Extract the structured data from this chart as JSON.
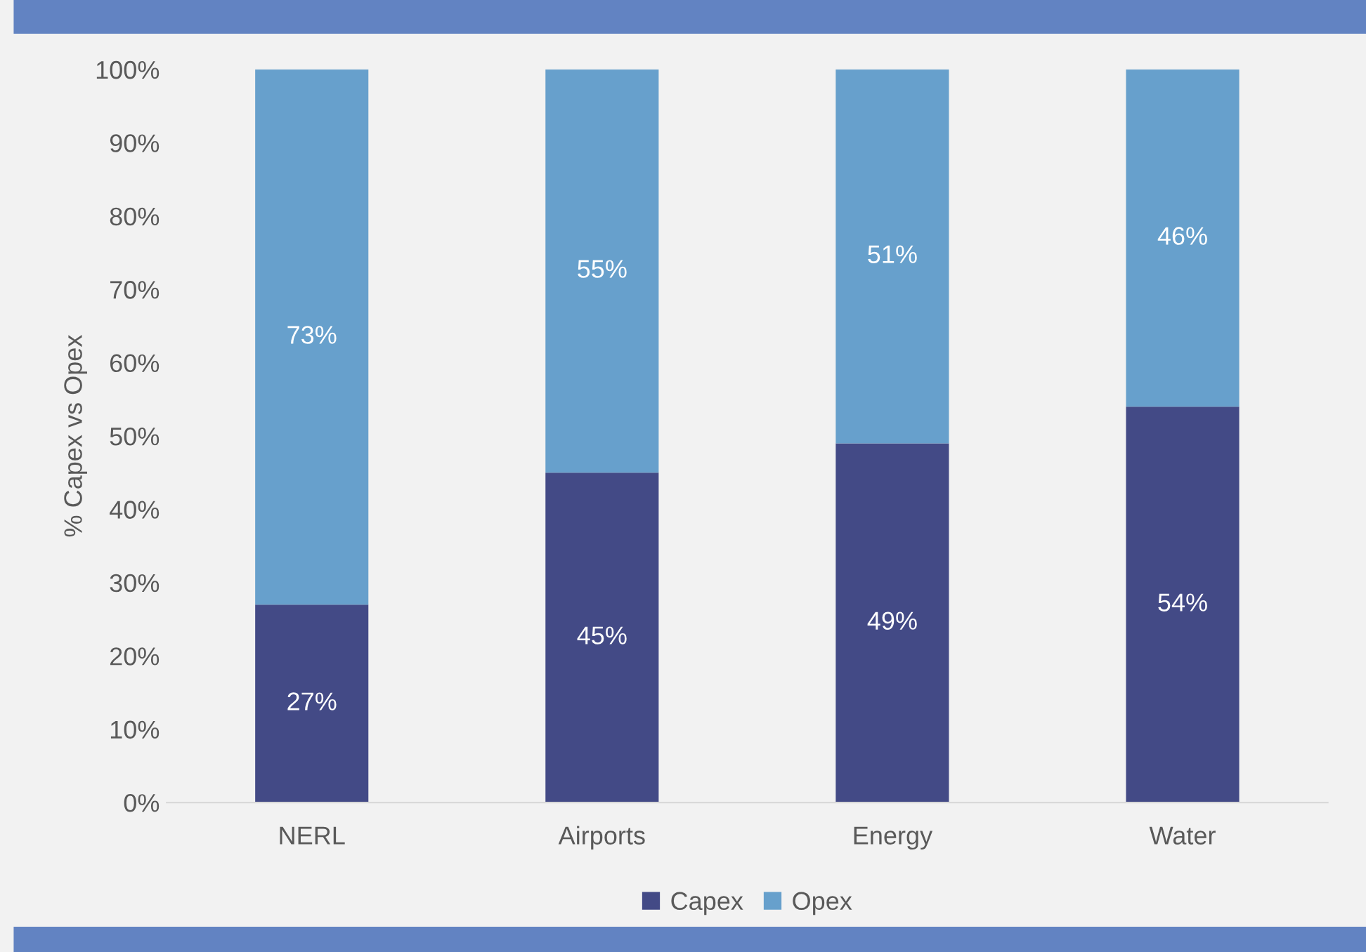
{
  "chart_data": {
    "type": "bar",
    "stacked": true,
    "ylabel": "% Capex vs Opex",
    "categories": [
      "NERL",
      "Airports",
      "Energy",
      "Water"
    ],
    "series": [
      {
        "name": "Capex",
        "color": "#434a86",
        "values": [
          27,
          45,
          49,
          54
        ],
        "value_labels": [
          "27%",
          "45%",
          "49%",
          "54%"
        ]
      },
      {
        "name": "Opex",
        "color": "#67a0cc",
        "values": [
          73,
          55,
          51,
          46
        ],
        "value_labels": [
          "73%",
          "55%",
          "51%",
          "46%"
        ]
      }
    ],
    "ylim": [
      0,
      100
    ],
    "yticks": [
      {
        "value": 0,
        "label": "0%"
      },
      {
        "value": 10,
        "label": "10%"
      },
      {
        "value": 20,
        "label": "20%"
      },
      {
        "value": 30,
        "label": "30%"
      },
      {
        "value": 40,
        "label": "40%"
      },
      {
        "value": 50,
        "label": "50%"
      },
      {
        "value": 60,
        "label": "60%"
      },
      {
        "value": 70,
        "label": "70%"
      },
      {
        "value": 80,
        "label": "80%"
      },
      {
        "value": 90,
        "label": "90%"
      },
      {
        "value": 100,
        "label": "100%"
      }
    ],
    "grid": false,
    "legend": "bottom"
  }
}
